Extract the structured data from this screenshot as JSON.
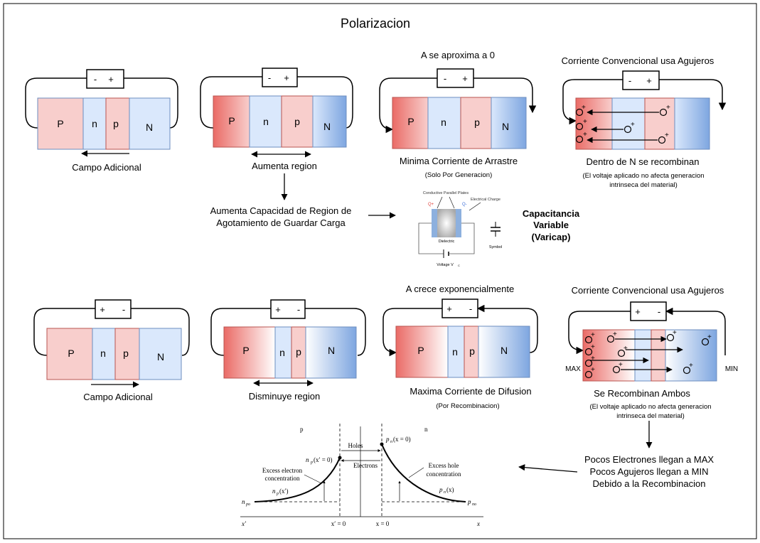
{
  "title": "Polarizacion",
  "polarity": {
    "rev_minus": "-",
    "rev_plus": "+",
    "fwd_plus": "+",
    "fwd_minus": "-"
  },
  "regions": {
    "P": "P",
    "n": "n",
    "p": "p",
    "N": "N"
  },
  "top_row": {
    "d1_caption": "Campo Adicional",
    "d2_caption": "Aumenta region",
    "d3_heading": "A se aproxima a 0",
    "d3_caption": "Minima Corriente de Arrastre",
    "d3_sub": "(Solo Por Generacion)",
    "d4_heading": "Corriente Convencional usa Agujeros",
    "d4_caption": "Dentro de N se recombinan",
    "d4_sub1": "(El voltaje aplicado no afecta generacion",
    "d4_sub2": "intrinseca del material)"
  },
  "capacitance": {
    "line1": "Aumenta Capacidad de Region de",
    "line2": "Agotamiento de Guardar Carga",
    "figure": {
      "plates": "Conductive Parallel Plates",
      "charge": "Electrical Charge",
      "dielectric": "Dielectric",
      "voltage": "Voltage V",
      "voltage_sub": "C",
      "symbol": "Symbol",
      "q_plus": "Q+",
      "q_minus": "Q-"
    },
    "varicap1": "Capacitancia",
    "varicap2": "Variable",
    "varicap3": "(Varicap)"
  },
  "bottom_row": {
    "d1_caption": "Campo Adicional",
    "d2_caption": "Disminuye region",
    "d3_heading": "A crece exponencialmente",
    "d3_caption": "Maxima Corriente de Difusion",
    "d3_sub": "(Por Recombinacion)",
    "d4_heading": "Corriente Convencional usa Agujeros",
    "d4_caption": "Se Recombinan Ambos",
    "d4_sub1": "(El voltaje aplicado no afecta generacion",
    "d4_sub2": "intrinseca del material)",
    "max": "MAX",
    "min": "MIN"
  },
  "recombination_note": {
    "line1": "Pocos Electrones llegan a MAX",
    "line2": "Pocos Agujeros llegan a MIN",
    "line3": "Debido a la Recombinacion"
  },
  "diffusion_plot": {
    "p_label": "p",
    "n_label": "n",
    "holes": "Holes",
    "electrons": "Electrons",
    "excess_electron1": "Excess electron",
    "excess_electron2": "concentration",
    "excess_hole1": "Excess hole",
    "excess_hole2": "concentration",
    "np_zero": "n",
    "np_zero_rest": "(x′ = 0)",
    "pn_zero": "p",
    "pn_zero_rest": "(x = 0)",
    "np_x": "n",
    "np_x_rest": "(x′)",
    "pn_x": "p",
    "pn_x_rest": "(x)",
    "npo": "n",
    "npo_sub": "po",
    "pno": "p",
    "pno_sub": "no",
    "x_prime": "x′",
    "x_prime_zero": "x′ = 0",
    "x_zero": "x = 0",
    "x": "x"
  },
  "colors": {
    "p_region": "#f8cecc",
    "n_region": "#dae8fc",
    "p_border": "#b85450",
    "n_border": "#6c8ebf",
    "red_strong": "#ea6b66",
    "blue_strong": "#7ea6e0"
  }
}
